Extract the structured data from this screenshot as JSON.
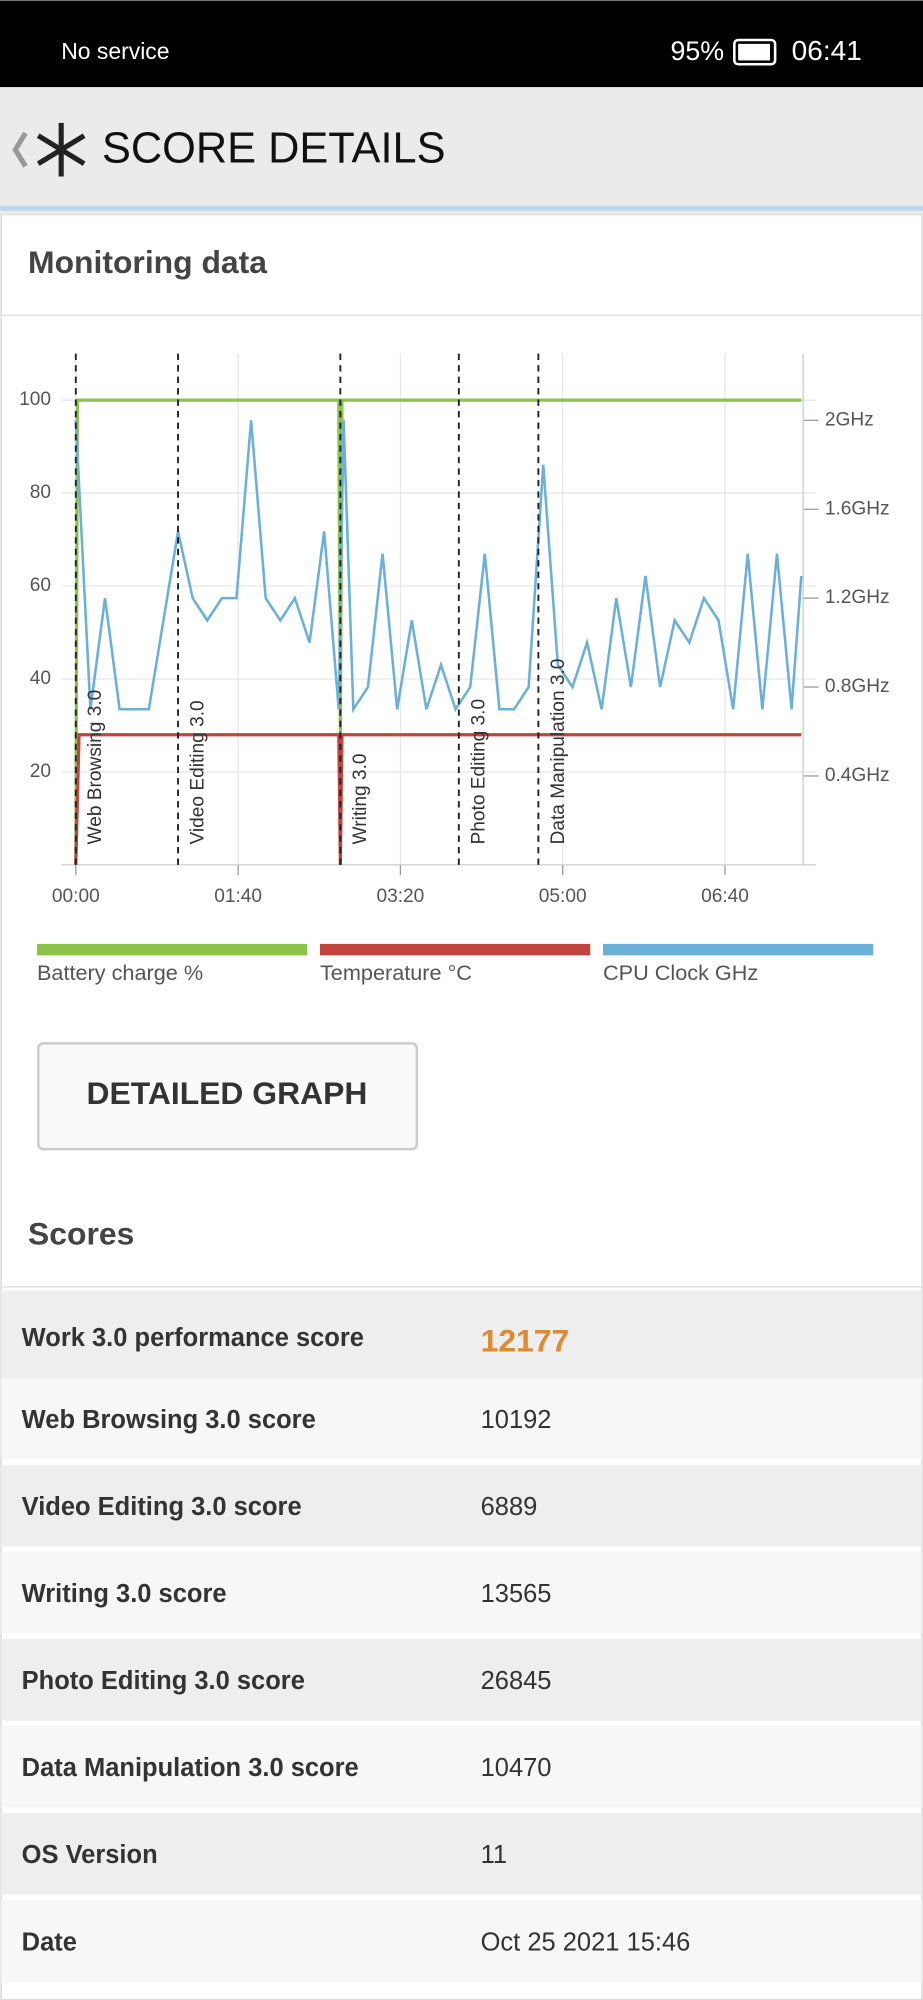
{
  "status_bar": {
    "carrier": "No service",
    "battery": "95%",
    "time": "06:41"
  },
  "header": {
    "title": "SCORE DETAILS"
  },
  "monitoring": {
    "title": "Monitoring data",
    "button": "DETAILED GRAPH"
  },
  "chart_data": {
    "type": "line",
    "xlim": [
      -9,
      456
    ],
    "xticks": [
      {
        "value": 0,
        "label": "00:00"
      },
      {
        "value": 100,
        "label": "01:40"
      },
      {
        "value": 200,
        "label": "03:20"
      },
      {
        "value": 300,
        "label": "05:00"
      },
      {
        "value": 400,
        "label": "06:40"
      }
    ],
    "ylim": [
      0,
      110
    ],
    "yticks": [
      20,
      40,
      60,
      80,
      100
    ],
    "y2lim": [
      0,
      2.3
    ],
    "y2ticks": [
      {
        "value": 0.4,
        "label": "0.4GHz"
      },
      {
        "value": 0.8,
        "label": "0.8GHz"
      },
      {
        "value": 1.2,
        "label": "1.2GHz"
      },
      {
        "value": 1.6,
        "label": "1.6GHz"
      },
      {
        "value": 2,
        "label": "2GHz"
      }
    ],
    "grid": true,
    "markers": [
      {
        "label": "Web Browsing 3.0",
        "x": 0
      },
      {
        "label": "Video Editing 3.0",
        "x": 63
      },
      {
        "label": "Writing 3.0",
        "x": 163
      },
      {
        "label": "Photo Editing 3.0",
        "x": 236
      },
      {
        "label": "Data Manipulation 3.0",
        "x": 285
      }
    ],
    "series": [
      {
        "name": "Battery charge %",
        "color": "#8bc34a",
        "x": [
          0,
          1,
          162,
          163,
          164,
          447
        ],
        "values": [
          0,
          100,
          100,
          28,
          100,
          100
        ]
      },
      {
        "name": "Temperature °C",
        "color": "#c0453f",
        "x": [
          0,
          2,
          162,
          163,
          164,
          447
        ],
        "values": [
          0,
          28,
          28,
          0,
          28,
          28
        ]
      },
      {
        "name": "CPU Clock GHz",
        "color": "#6ab0d8",
        "axis": "y2",
        "x": [
          0,
          9,
          18,
          27,
          36,
          45,
          54,
          63,
          72,
          81,
          90,
          99,
          108,
          117,
          126,
          135,
          144,
          153,
          162,
          165,
          171,
          180,
          189,
          198,
          207,
          216,
          225,
          234,
          243,
          252,
          261,
          270,
          279,
          288,
          297,
          306,
          315,
          324,
          333,
          342,
          351,
          360,
          369,
          378,
          387,
          396,
          405,
          414,
          423,
          432,
          441,
          447
        ],
        "values": [
          2.0,
          0.7,
          1.2,
          0.7,
          0.7,
          0.7,
          1.1,
          1.5,
          1.2,
          1.1,
          1.2,
          1.2,
          2.0,
          1.2,
          1.1,
          1.2,
          1.0,
          1.5,
          0.7,
          2.0,
          0.7,
          0.8,
          1.4,
          0.7,
          1.1,
          0.7,
          0.9,
          0.7,
          0.8,
          1.4,
          0.7,
          0.7,
          0.8,
          1.8,
          0.9,
          0.8,
          1.0,
          0.7,
          1.2,
          0.8,
          1.3,
          0.8,
          1.1,
          1.0,
          1.2,
          1.1,
          0.7,
          1.4,
          0.7,
          1.4,
          0.7,
          1.3
        ]
      }
    ]
  },
  "scores": {
    "title": "Scores",
    "rows": [
      [
        "Work 3.0 performance score",
        "12177"
      ],
      [
        "Web Browsing 3.0 score",
        "10192"
      ],
      [
        "Video Editing 3.0 score",
        "6889"
      ],
      [
        "Writing 3.0 score",
        "13565"
      ],
      [
        "Photo Editing 3.0 score",
        "26845"
      ],
      [
        "Data Manipulation 3.0 score",
        "10470"
      ],
      [
        "OS Version",
        "11"
      ],
      [
        "Date",
        "Oct 25 2021 15:46"
      ]
    ]
  }
}
